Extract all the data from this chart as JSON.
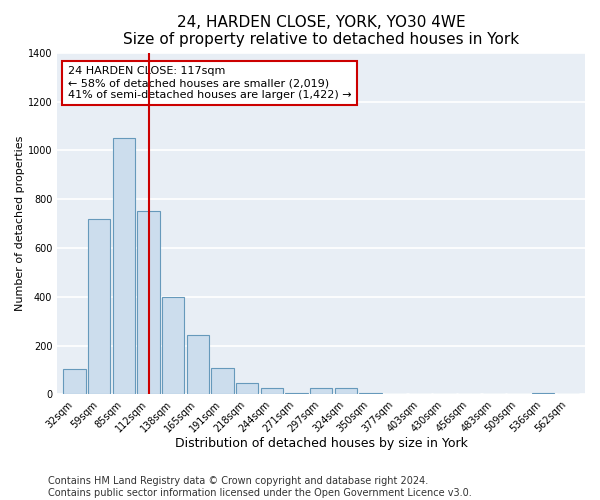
{
  "title": "24, HARDEN CLOSE, YORK, YO30 4WE",
  "subtitle": "Size of property relative to detached houses in York",
  "xlabel": "Distribution of detached houses by size in York",
  "ylabel": "Number of detached properties",
  "bar_labels": [
    "32sqm",
    "59sqm",
    "85sqm",
    "112sqm",
    "138sqm",
    "165sqm",
    "191sqm",
    "218sqm",
    "244sqm",
    "271sqm",
    "297sqm",
    "324sqm",
    "350sqm",
    "377sqm",
    "403sqm",
    "430sqm",
    "456sqm",
    "483sqm",
    "509sqm",
    "536sqm",
    "562sqm"
  ],
  "bar_values": [
    105,
    720,
    1050,
    750,
    400,
    245,
    110,
    48,
    28,
    5,
    28,
    25,
    5,
    0,
    0,
    3,
    0,
    0,
    0,
    5,
    0
  ],
  "bar_color": "#ccdded",
  "bar_edge_color": "#6699bb",
  "vline_x_index": 3,
  "vline_color": "#cc0000",
  "ylim": [
    0,
    1400
  ],
  "yticks": [
    0,
    200,
    400,
    600,
    800,
    1000,
    1200,
    1400
  ],
  "annotation_line1": "24 HARDEN CLOSE: 117sqm",
  "annotation_line2": "← 58% of detached houses are smaller (2,019)",
  "annotation_line3": "41% of semi-detached houses are larger (1,422) →",
  "annotation_box_color": "#cc0000",
  "footer_line1": "Contains HM Land Registry data © Crown copyright and database right 2024.",
  "footer_line2": "Contains public sector information licensed under the Open Government Licence v3.0.",
  "bg_color": "#ffffff",
  "plot_bg_color": "#e8eef5",
  "grid_color": "#ffffff",
  "title_fontsize": 11,
  "subtitle_fontsize": 9.5,
  "xlabel_fontsize": 9,
  "ylabel_fontsize": 8,
  "tick_fontsize": 7,
  "annotation_fontsize": 8,
  "footer_fontsize": 7
}
